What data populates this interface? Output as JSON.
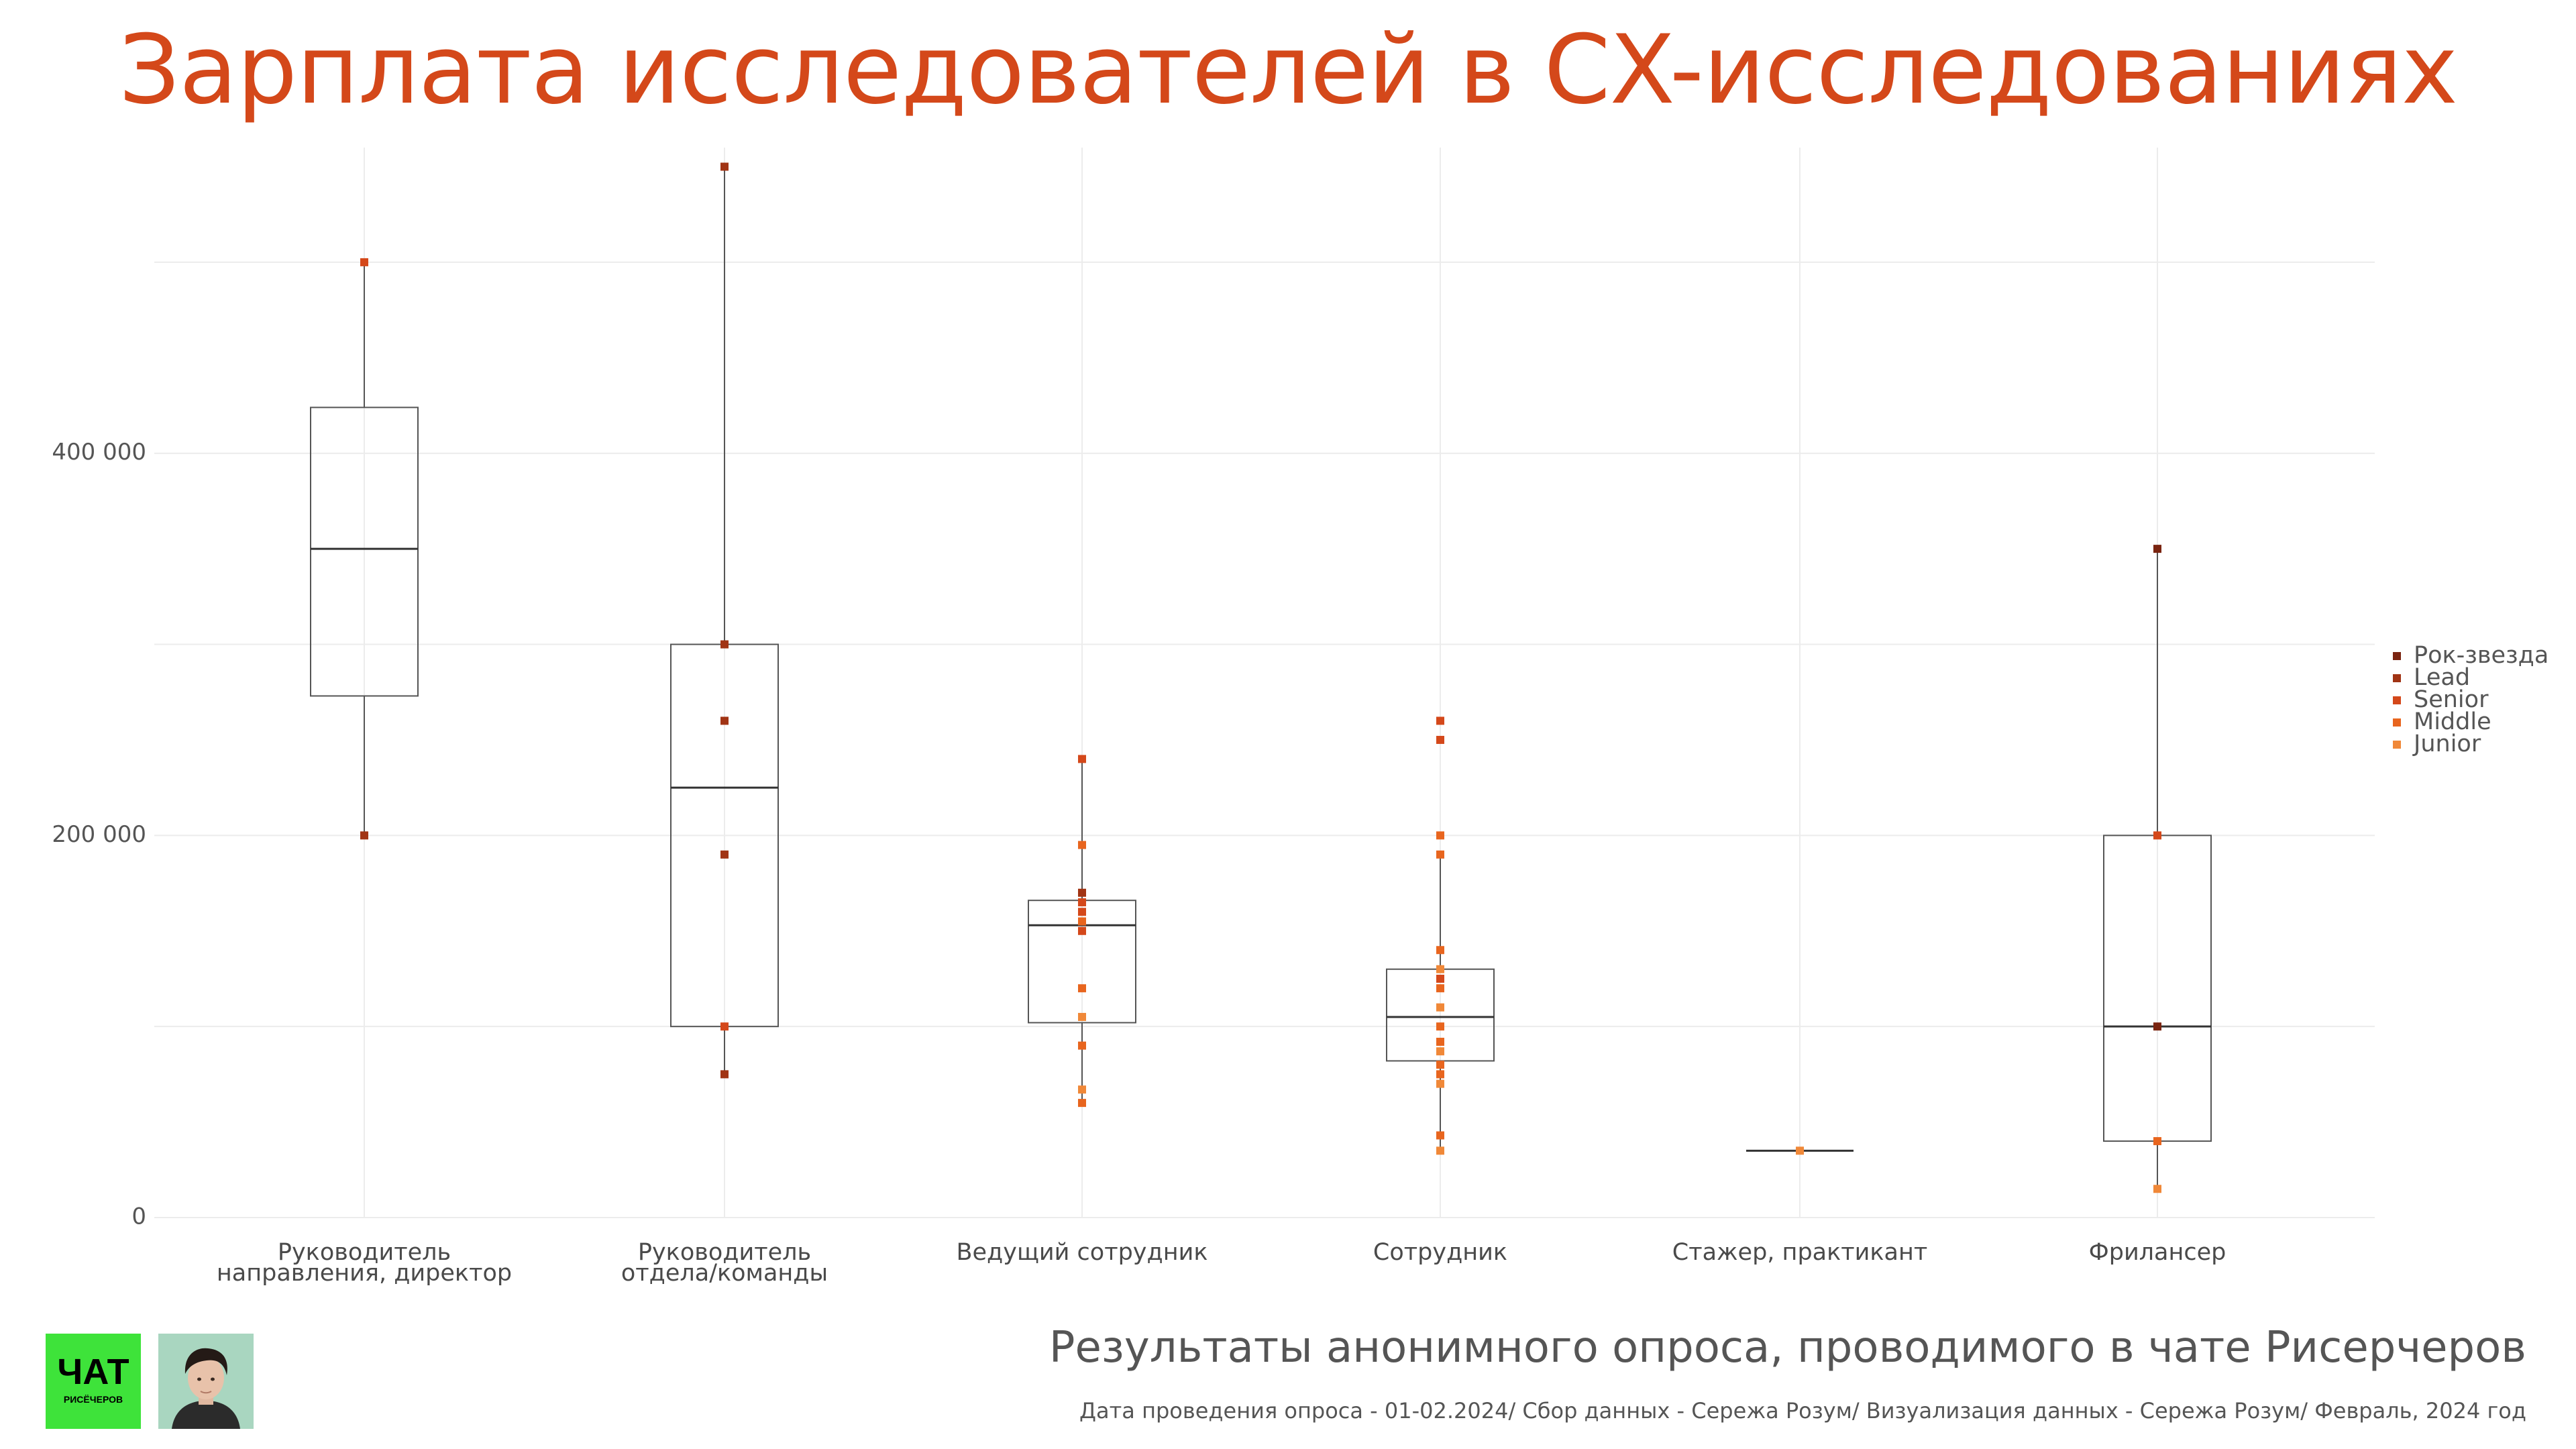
{
  "chart_data": {
    "type": "box",
    "title": "Зарплата исследователей в CX-исследованиях",
    "xlabel": "",
    "ylabel": "",
    "ylim": [
      0,
      560000
    ],
    "yticks": [
      0,
      200000,
      400000
    ],
    "ytick_labels": [
      "0",
      "200 000",
      "400 000"
    ],
    "grid": true,
    "legend_position": "right",
    "categories": [
      [
        "Руководитель",
        "направления, директор"
      ],
      [
        "Руководитель",
        "отдела/команды"
      ],
      [
        "Ведущий сотрудник"
      ],
      [
        "Сотрудник"
      ],
      [
        "Стажер, практикант"
      ],
      [
        "Фрилансер"
      ]
    ],
    "levels": [
      {
        "name": "Рок-звезда",
        "color": "#7a2410"
      },
      {
        "name": "Lead",
        "color": "#a13414"
      },
      {
        "name": "Senior",
        "color": "#d4481a"
      },
      {
        "name": "Middle",
        "color": "#e8651e"
      },
      {
        "name": "Junior",
        "color": "#f08838"
      }
    ],
    "boxes": [
      {
        "category": "Руководитель направления, директор",
        "min": 200000,
        "q1": 273000,
        "median": 350000,
        "q3": 424000,
        "max": 500000
      },
      {
        "category": "Руководитель отдела/команды",
        "min": 75000,
        "q1": 100000,
        "median": 225000,
        "q3": 300000,
        "max": 550000
      },
      {
        "category": "Ведущий сотрудник",
        "min": 60000,
        "q1": 102000,
        "median": 153000,
        "q3": 166000,
        "max": 240000
      },
      {
        "category": "Сотрудник",
        "min": 35000,
        "q1": 82000,
        "median": 105000,
        "q3": 130000,
        "max": 190000
      },
      {
        "category": "Стажер, практикант",
        "min": 35000,
        "q1": 35000,
        "median": 35000,
        "q3": 35000,
        "max": 35000
      },
      {
        "category": "Фрилансер",
        "min": 15000,
        "q1": 40000,
        "median": 100000,
        "q3": 200000,
        "max": 350000
      }
    ],
    "points": [
      {
        "category": 0,
        "level": "Senior",
        "y": 500000
      },
      {
        "category": 0,
        "level": "Lead",
        "y": 200000
      },
      {
        "category": 1,
        "level": "Lead",
        "y": 550000
      },
      {
        "category": 1,
        "level": "Lead",
        "y": 300000
      },
      {
        "category": 1,
        "level": "Lead",
        "y": 260000
      },
      {
        "category": 1,
        "level": "Lead",
        "y": 190000
      },
      {
        "category": 1,
        "level": "Senior",
        "y": 100000
      },
      {
        "category": 1,
        "level": "Lead",
        "y": 75000
      },
      {
        "category": 2,
        "level": "Senior",
        "y": 240000
      },
      {
        "category": 2,
        "level": "Middle",
        "y": 195000
      },
      {
        "category": 2,
        "level": "Lead",
        "y": 170000
      },
      {
        "category": 2,
        "level": "Senior",
        "y": 165000
      },
      {
        "category": 2,
        "level": "Senior",
        "y": 160000
      },
      {
        "category": 2,
        "level": "Middle",
        "y": 155000
      },
      {
        "category": 2,
        "level": "Senior",
        "y": 150000
      },
      {
        "category": 2,
        "level": "Middle",
        "y": 120000
      },
      {
        "category": 2,
        "level": "Junior",
        "y": 105000
      },
      {
        "category": 2,
        "level": "Middle",
        "y": 90000
      },
      {
        "category": 2,
        "level": "Junior",
        "y": 67000
      },
      {
        "category": 2,
        "level": "Middle",
        "y": 60000
      },
      {
        "category": 3,
        "level": "Senior",
        "y": 260000
      },
      {
        "category": 3,
        "level": "Senior",
        "y": 250000
      },
      {
        "category": 3,
        "level": "Middle",
        "y": 200000
      },
      {
        "category": 3,
        "level": "Middle",
        "y": 190000
      },
      {
        "category": 3,
        "level": "Middle",
        "y": 140000
      },
      {
        "category": 3,
        "level": "Junior",
        "y": 130000
      },
      {
        "category": 3,
        "level": "Senior",
        "y": 125000
      },
      {
        "category": 3,
        "level": "Middle",
        "y": 120000
      },
      {
        "category": 3,
        "level": "Junior",
        "y": 110000
      },
      {
        "category": 3,
        "level": "Middle",
        "y": 100000
      },
      {
        "category": 3,
        "level": "Middle",
        "y": 92000
      },
      {
        "category": 3,
        "level": "Junior",
        "y": 87000
      },
      {
        "category": 3,
        "level": "Middle",
        "y": 80000
      },
      {
        "category": 3,
        "level": "Middle",
        "y": 75000
      },
      {
        "category": 3,
        "level": "Junior",
        "y": 70000
      },
      {
        "category": 3,
        "level": "Middle",
        "y": 43000
      },
      {
        "category": 3,
        "level": "Junior",
        "y": 35000
      },
      {
        "category": 4,
        "level": "Junior",
        "y": 35000
      },
      {
        "category": 5,
        "level": "Rok",
        "y": 350000
      },
      {
        "category": 5,
        "level": "Senior",
        "y": 200000
      },
      {
        "category": 5,
        "level": "Rok",
        "y": 100000
      },
      {
        "category": 5,
        "level": "Middle",
        "y": 40000
      },
      {
        "category": 5,
        "level": "Junior",
        "y": 15000
      }
    ]
  },
  "footer": {
    "subtitle": "Результаты анонимного опроса,  проводимого в чате Рисерчеров",
    "caption": "Дата проведения опроса - 01-02.2024/ Сбор данных - Сережа Розум/ Визуализация данных - Сережа Розум/ Февраль, 2024 год",
    "logo_title": "ЧАТ",
    "logo_subtitle": "РИСЁЧЕРОВ"
  }
}
